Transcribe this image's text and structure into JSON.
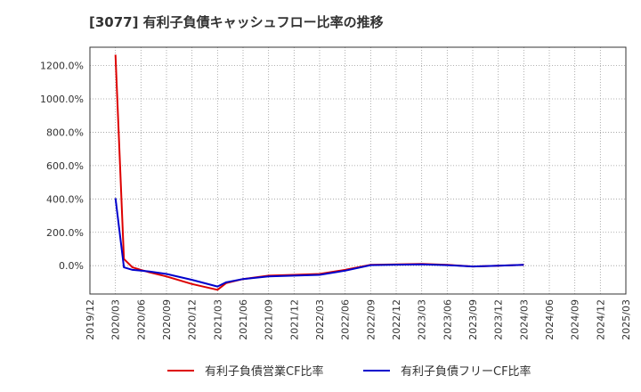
{
  "title": "[3077]  有利子負債キャッシュフロー比率の推移",
  "chart_data": {
    "type": "line",
    "title": "[3077]  有利子負債キャッシュフロー比率の推移",
    "xlabel": "",
    "ylabel": "",
    "x_ticks": [
      "2019/12",
      "2020/03",
      "2020/06",
      "2020/09",
      "2020/12",
      "2021/03",
      "2021/06",
      "2021/09",
      "2021/12",
      "2022/03",
      "2022/06",
      "2022/09",
      "2022/12",
      "2023/03",
      "2023/06",
      "2023/09",
      "2023/12",
      "2024/03",
      "2024/06",
      "2024/09",
      "2024/12",
      "2025/03"
    ],
    "y_ticks": [
      0,
      200,
      400,
      600,
      800,
      1000,
      1200
    ],
    "y_tick_labels": [
      "0.0%",
      "200.0%",
      "400.0%",
      "600.0%",
      "800.0%",
      "1000.0%",
      "1200.0%"
    ],
    "ylim": [
      -170,
      1310
    ],
    "grid": true,
    "series": [
      {
        "name": "有利子負債営業CF比率",
        "color": "#dd0000",
        "x": [
          "2020/03",
          "2020/04",
          "2020/05",
          "2020/06",
          "2020/07",
          "2020/09",
          "2020/12",
          "2021/03",
          "2021/04",
          "2021/06",
          "2021/09",
          "2021/12",
          "2022/03",
          "2022/06",
          "2022/09",
          "2022/12",
          "2023/03",
          "2023/06",
          "2023/09",
          "2023/12",
          "2024/03"
        ],
        "values": [
          1265,
          40,
          -10,
          -25,
          -40,
          -65,
          -110,
          -145,
          -105,
          -80,
          -60,
          -55,
          -50,
          -25,
          5,
          8,
          10,
          5,
          -5,
          0,
          5
        ]
      },
      {
        "name": "有利子負債フリーCF比率",
        "color": "#0000cc",
        "x": [
          "2020/03",
          "2020/04",
          "2020/05",
          "2020/06",
          "2020/07",
          "2020/09",
          "2020/12",
          "2021/03",
          "2021/04",
          "2021/06",
          "2021/09",
          "2021/12",
          "2022/03",
          "2022/06",
          "2022/09",
          "2022/12",
          "2023/03",
          "2023/06",
          "2023/09",
          "2023/12",
          "2024/03"
        ],
        "values": [
          405,
          -10,
          -25,
          -30,
          -35,
          -50,
          -85,
          -125,
          -100,
          -80,
          -65,
          -60,
          -55,
          -30,
          3,
          6,
          8,
          3,
          -5,
          0,
          5
        ]
      }
    ],
    "legend_position": "bottom-center"
  }
}
